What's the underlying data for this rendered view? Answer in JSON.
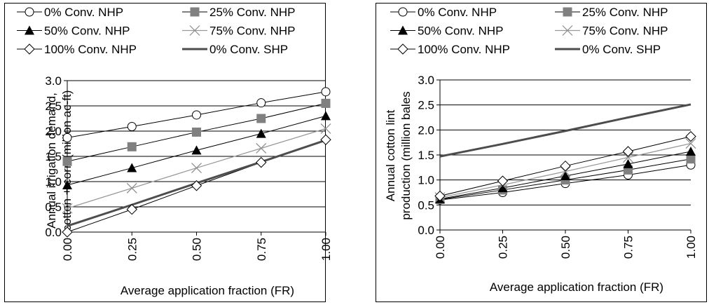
{
  "colors": {
    "frame": "#000000",
    "grid": "#000000",
    "gray_marker": "#808080",
    "nhp_line": "#000000",
    "shp_line": "#4d4d4d",
    "light_line": "#999999"
  },
  "legend": [
    {
      "label": "0% Conv. NHP",
      "marker": "circle-open"
    },
    {
      "label": "25% Conv. NHP",
      "marker": "square-gray"
    },
    {
      "label": "50% Conv. NHP",
      "marker": "triangle-filled"
    },
    {
      "label": "75% Conv. NHP",
      "marker": "x-cross"
    },
    {
      "label": "100% Conv. NHP",
      "marker": "diamond-open"
    },
    {
      "label": "0% Conv. SHP",
      "marker": "thick-line"
    }
  ],
  "chart_data": [
    {
      "type": "line",
      "xlabel": "Average application fraction (FR)",
      "ylabel_lines": [
        "Annual irrigation demand,",
        "cotton + corn (million ac-ft)"
      ],
      "x": [
        0.0,
        0.25,
        0.5,
        0.75,
        1.0
      ],
      "x_tick_labels": [
        "0.00",
        "0.25",
        "0.50",
        "0.75",
        "1.00"
      ],
      "y_tick_labels": [
        "0.0",
        "0.5",
        "1.0",
        "1.5",
        "2.0",
        "2.5",
        "3.0"
      ],
      "ylim": [
        0,
        3.0
      ],
      "grid": "horizontal",
      "legend_position": "top",
      "series": [
        {
          "name": "0% Conv. NHP",
          "values": [
            1.87,
            2.09,
            2.32,
            2.56,
            2.78
          ]
        },
        {
          "name": "25% Conv. NHP",
          "values": [
            1.4,
            1.69,
            1.98,
            2.25,
            2.55
          ]
        },
        {
          "name": "50% Conv. NHP",
          "values": [
            0.93,
            1.27,
            1.62,
            1.95,
            2.3
          ]
        },
        {
          "name": "75% Conv. NHP",
          "values": [
            0.47,
            0.87,
            1.27,
            1.66,
            2.05
          ]
        },
        {
          "name": "100% Conv. NHP",
          "values": [
            0.0,
            0.45,
            0.92,
            1.38,
            1.83
          ]
        },
        {
          "name": "0% Conv. SHP",
          "values": [
            0.12,
            0.54,
            0.97,
            1.39,
            1.82
          ]
        }
      ]
    },
    {
      "type": "line",
      "xlabel": "Average application fraction (FR)",
      "ylabel_lines": [
        "Annual cotton lint",
        "production (million bales"
      ],
      "x": [
        0.0,
        0.25,
        0.5,
        0.75,
        1.0
      ],
      "x_tick_labels": [
        "0.00",
        "0.25",
        "0.50",
        "0.75",
        "1.00"
      ],
      "y_tick_labels": [
        "0.0",
        "0.5",
        "1.0",
        "1.5",
        "2.0",
        "2.5",
        "3.0"
      ],
      "ylim": [
        0,
        3.0
      ],
      "grid": "horizontal",
      "legend_position": "top",
      "series": [
        {
          "name": "0% Conv. NHP",
          "values": [
            0.6,
            0.75,
            0.93,
            1.1,
            1.3
          ]
        },
        {
          "name": "25% Conv. NHP",
          "values": [
            0.61,
            0.8,
            1.0,
            1.2,
            1.42
          ]
        },
        {
          "name": "50% Conv. NHP",
          "values": [
            0.62,
            0.84,
            1.08,
            1.32,
            1.57
          ]
        },
        {
          "name": "75% Conv. NHP",
          "values": [
            0.65,
            0.9,
            1.17,
            1.45,
            1.73
          ]
        },
        {
          "name": "100% Conv. NHP",
          "values": [
            0.68,
            0.98,
            1.28,
            1.57,
            1.87
          ]
        },
        {
          "name": "0% Conv. SHP",
          "values": [
            1.47,
            1.72,
            1.98,
            2.25,
            2.51
          ]
        }
      ]
    }
  ]
}
